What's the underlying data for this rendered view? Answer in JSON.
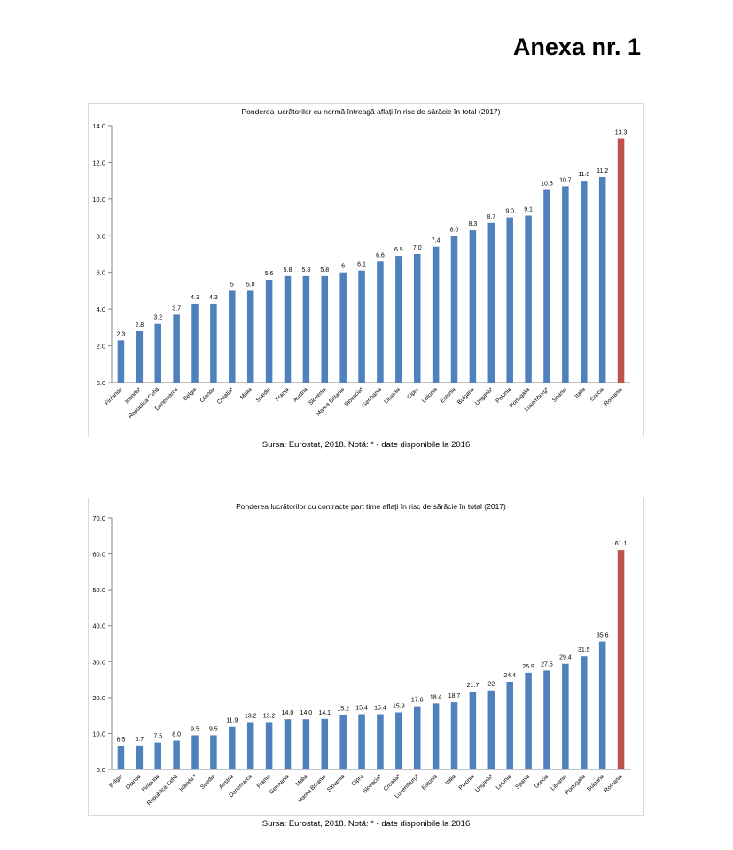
{
  "page": {
    "heading": "Anexa nr. 1"
  },
  "colors": {
    "bar": "#4f81bd",
    "highlight": "#c0504d",
    "axis": "#868686",
    "grid": "#d9d9d9"
  },
  "chart_data": [
    {
      "type": "bar",
      "title": "Ponderea lucrătorilor cu normă întreagă aflați în risc de sărăcie în total (2017)",
      "source": "Sursa: Eurostat, 2018. Notă: * - date disponibile la 2016",
      "categories": [
        "Finlanda",
        "Irlanda*",
        "Republica Cehă",
        "Danemarca",
        "Belgia",
        "Olanda",
        "Croatia*",
        "Malta",
        "Suedia",
        "Franța",
        "Austria",
        "Slovenia",
        "Marea Britanie",
        "Slovacia*",
        "Germania",
        "Lituania",
        "Cipru",
        "Letonia",
        "Estonia",
        "Bulgaria",
        "Ungaria*",
        "Polonia",
        "Portugalia",
        "Luxemburg*",
        "Spania",
        "Italia",
        "Grecia",
        "Romania"
      ],
      "values": [
        2.3,
        2.8,
        3.2,
        3.7,
        4.3,
        4.3,
        5,
        5.0,
        5.6,
        5.8,
        5.8,
        5.8,
        6,
        6.1,
        6.6,
        6.9,
        7.0,
        7.4,
        8.0,
        8.3,
        8.7,
        9.0,
        9.1,
        10.5,
        10.7,
        11.0,
        11.2,
        13.3
      ],
      "value_labels": [
        "2.3",
        "2.8",
        "3.2",
        "3.7",
        "4.3",
        "4.3",
        "5",
        "5.0",
        "5.6",
        "5.8",
        "5.8",
        "5.8",
        "6",
        "6.1",
        "6.6",
        "6.9",
        "7.0",
        "7.4",
        "8.0",
        "8.3",
        "8.7",
        "9.0",
        "9.1",
        "10.5",
        "10.7",
        "11.0",
        "11.2",
        "13.3"
      ],
      "highlight": [
        "Romania"
      ],
      "ylim": [
        0,
        14
      ],
      "yticks": [
        "0.0",
        "2.0",
        "4.0",
        "6.0",
        "8.0",
        "10.0",
        "12.0",
        "14.0"
      ],
      "xlabel": "",
      "ylabel": "",
      "grid": false,
      "legend": "none"
    },
    {
      "type": "bar",
      "title": "Ponderea lucrătorilor cu contracte part time aflați în risc de sărăcie în total (2017)",
      "source": "Sursa: Eurostat, 2018. Notă: * - date disponibile la 2016",
      "categories": [
        "Belgia",
        "Olanda",
        "Finlanda",
        "Republica Cehă",
        "Irlanda *",
        "Suedia",
        "Austria",
        "Danemarca",
        "Franta",
        "Germania",
        "Malta",
        "Marea Britanie",
        "Slovenia",
        "Cipru",
        "Slovacia*",
        "Croatia*",
        "Luxemburg*",
        "Estonia",
        "Italia",
        "Polonia",
        "Ungaria*",
        "Letonia",
        "Spania",
        "Grecia",
        "Lituania",
        "Portugalia",
        "Bulgaria",
        "Romania"
      ],
      "values": [
        6.5,
        6.7,
        7.5,
        8.0,
        9.5,
        9.5,
        11.9,
        13.2,
        13.2,
        14.0,
        14.0,
        14.1,
        15.2,
        15.4,
        15.4,
        15.9,
        17.6,
        18.4,
        18.7,
        21.7,
        22,
        24.4,
        26.9,
        27.5,
        29.4,
        31.5,
        35.6,
        61.1
      ],
      "value_labels": [
        "6.5",
        "6.7",
        "7.5",
        "8.0",
        "9.5",
        "9.5",
        "11.9",
        "13.2",
        "13.2",
        "14.0",
        "14.0",
        "14.1",
        "15.2",
        "15.4",
        "15.4",
        "15.9",
        "17.6",
        "18.4",
        "18.7",
        "21.7",
        "22",
        "24.4",
        "26.9",
        "27.5",
        "29.4",
        "31.5",
        "35.6",
        "61.1"
      ],
      "highlight": [
        "Romania"
      ],
      "ylim": [
        0,
        70
      ],
      "yticks": [
        "0.0",
        "10.0",
        "20.0",
        "30.0",
        "40.0",
        "50.0",
        "60.0",
        "70.0"
      ],
      "xlabel": "",
      "ylabel": "",
      "grid": false,
      "legend": "none"
    }
  ]
}
